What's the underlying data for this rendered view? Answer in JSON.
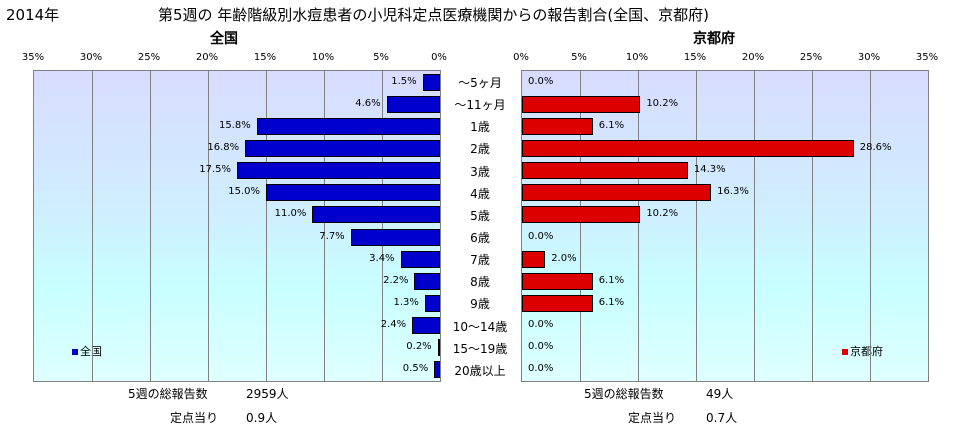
{
  "year": "2014年",
  "title": "第5週の 年齢階級別水痘患者の小児科定点医療機関からの報告割合(全国、京都府)",
  "panels": {
    "left": {
      "title": "全国",
      "legend": "全国",
      "total_label": "5週の総報告数",
      "total_value": "2959人",
      "per_label": "定点当り",
      "per_value": "0.9人"
    },
    "right": {
      "title": "京都府",
      "legend": "京都府",
      "total_label": "5週の総報告数",
      "total_value": "49人",
      "per_label": "定点当り",
      "per_value": "0.7人"
    }
  },
  "colors": {
    "national": "#0000cc",
    "kyoto": "#dd0000",
    "border": "#000000",
    "grid": "#808080"
  },
  "chart_data": [
    {
      "type": "bar",
      "orientation": "horizontal",
      "direction": "right-to-left",
      "title": "全国",
      "categories": [
        "～5ヶ月",
        "～11ヶ月",
        "1歳",
        "2歳",
        "3歳",
        "4歳",
        "5歳",
        "6歳",
        "7歳",
        "8歳",
        "9歳",
        "10～14歳",
        "15～19歳",
        "20歳以上"
      ],
      "series": [
        {
          "name": "全国",
          "values": [
            1.5,
            4.6,
            15.8,
            16.8,
            17.5,
            15.0,
            11.0,
            7.7,
            3.4,
            2.2,
            1.3,
            2.4,
            0.2,
            0.5
          ]
        }
      ],
      "value_labels": [
        "1.5%",
        "4.6%",
        "15.8%",
        "16.8%",
        "17.5%",
        "15.0%",
        "11.0%",
        "7.7%",
        "3.4%",
        "2.2%",
        "1.3%",
        "2.4%",
        "0.2%",
        "0.5%"
      ],
      "xlim": [
        0,
        35
      ],
      "ticks": [
        "35%",
        "30%",
        "25%",
        "20%",
        "15%",
        "10%",
        "5%",
        "0%"
      ],
      "grid": true,
      "legend_position": "bottom-left"
    },
    {
      "type": "bar",
      "orientation": "horizontal",
      "direction": "left-to-right",
      "title": "京都府",
      "categories": [
        "～5ヶ月",
        "～11ヶ月",
        "1歳",
        "2歳",
        "3歳",
        "4歳",
        "5歳",
        "6歳",
        "7歳",
        "8歳",
        "9歳",
        "10～14歳",
        "15～19歳",
        "20歳以上"
      ],
      "series": [
        {
          "name": "京都府",
          "values": [
            0.0,
            10.2,
            6.1,
            28.6,
            14.3,
            16.3,
            10.2,
            0.0,
            2.0,
            6.1,
            6.1,
            0.0,
            0.0,
            0.0
          ]
        }
      ],
      "value_labels": [
        "0.0%",
        "10.2%",
        "6.1%",
        "28.6%",
        "14.3%",
        "16.3%",
        "10.2%",
        "0.0%",
        "2.0%",
        "6.1%",
        "6.1%",
        "0.0%",
        "0.0%",
        "0.0%"
      ],
      "xlim": [
        0,
        35
      ],
      "ticks": [
        "0%",
        "5%",
        "10%",
        "15%",
        "20%",
        "25%",
        "30%",
        "35%"
      ],
      "grid": true,
      "legend_position": "bottom-right"
    }
  ]
}
